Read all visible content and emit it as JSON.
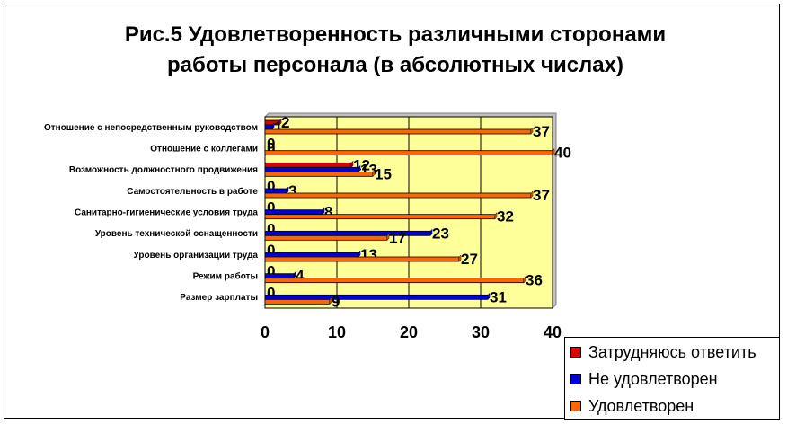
{
  "chart_data": {
    "type": "bar",
    "orientation": "horizontal",
    "title": "Рис.5 Удовлетворенность различными сторонами\nработы персонала (в абсолютных числах)",
    "xlim": [
      0,
      40
    ],
    "xticks": [
      "0",
      "10",
      "20",
      "30",
      "40"
    ],
    "grid": true,
    "legend_position": "bottom-right",
    "categories": [
      "Отношение с непосредственным руководством",
      "Отношение с коллегами",
      "Возможность должностного продвижения",
      "Самостоятельность в работе",
      "Санитарно-гигиенические условия труда",
      "Уровень технической оснащенности",
      "Уровень организации труда",
      "Режим работы",
      "Размер зарплаты"
    ],
    "series": [
      {
        "name": "Затрудняюсь ответить",
        "color": "#dd0000",
        "values": [
          2,
          0,
          12,
          0,
          0,
          0,
          0,
          0,
          0
        ]
      },
      {
        "name": "Не удовлетворен",
        "color": "#0000dd",
        "values": [
          1,
          0,
          13,
          3,
          8,
          23,
          13,
          4,
          31
        ]
      },
      {
        "name": "Удовлетворен",
        "color": "#ff6600",
        "values": [
          37,
          40,
          15,
          37,
          32,
          17,
          27,
          36,
          9
        ]
      }
    ],
    "plot_background": "#ffff99"
  }
}
